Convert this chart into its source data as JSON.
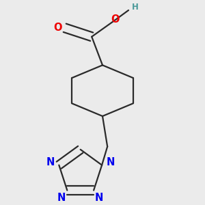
{
  "background_color": "#ebebeb",
  "bond_color": "#2a2a2a",
  "nitrogen_color": "#0000ee",
  "oxygen_color": "#ee0000",
  "hydrogen_color": "#4a9999",
  "bond_width": 1.6,
  "font_size_atom": 10.5,
  "font_size_h": 8.5,
  "figsize": [
    3.0,
    3.0
  ],
  "dpi": 100,
  "xlim": [
    -1.8,
    1.8
  ],
  "ylim": [
    -2.2,
    1.8
  ]
}
